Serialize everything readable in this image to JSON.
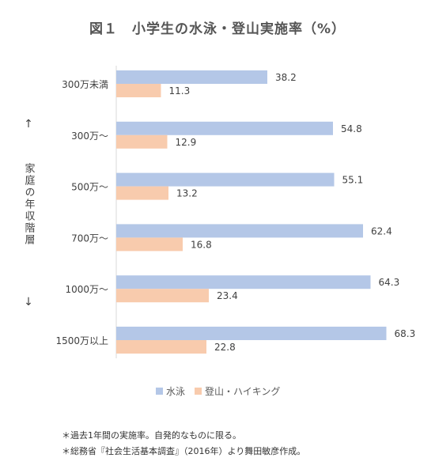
{
  "title": "図１　小学生の水泳・登山実施率（%）",
  "chart_data": {
    "type": "bar",
    "orientation": "horizontal",
    "categories": [
      "300万未満",
      "300万〜",
      "500万〜",
      "700万〜",
      "1000万〜",
      "1500万以上"
    ],
    "series": [
      {
        "name": "水泳",
        "color": "#b4c7e7",
        "values": [
          38.2,
          54.8,
          55.1,
          62.4,
          64.3,
          68.3
        ]
      },
      {
        "name": "登山・ハイキング",
        "color": "#f8cbad",
        "values": [
          11.3,
          12.9,
          13.2,
          16.8,
          23.4,
          22.8
        ]
      }
    ],
    "xlim": [
      0,
      80
    ],
    "grid": false,
    "legend_position": "bottom",
    "ylabel": "家庭の年収階層",
    "ylabel_arrow_top": "↑",
    "ylabel_arrow_bottom": "↓"
  },
  "notes": [
    "＊過去1年間の実施率。自発的なものに限る。",
    "＊総務省『社会生活基本調査』（2016年）より舞田敏彦作成。"
  ]
}
